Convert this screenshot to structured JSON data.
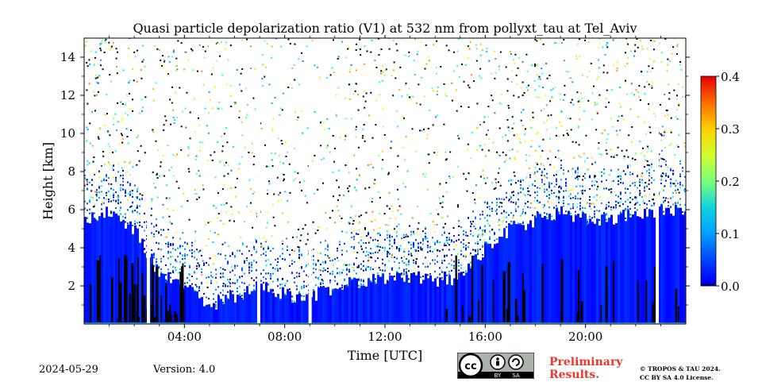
{
  "chart_data": {
    "type": "heatmap",
    "title": "Quasi particle depolarization ratio (V1) at 532 nm from pollyxt_tau at Tel_Aviv",
    "xlabel": "Time [UTC]",
    "ylabel": "Height [km]",
    "xlim": [
      0,
      24
    ],
    "ylim": [
      0,
      15
    ],
    "xticks": [
      4,
      8,
      12,
      16,
      20
    ],
    "xtick_labels": [
      "04:00",
      "08:00",
      "12:00",
      "16:00",
      "20:00"
    ],
    "yticks": [
      2,
      4,
      6,
      8,
      10,
      12,
      14
    ],
    "ytick_labels": [
      "2",
      "4",
      "6",
      "8",
      "10",
      "12",
      "14"
    ],
    "colorbar": {
      "range": [
        0.0,
        0.4
      ],
      "ticks": [
        0.0,
        0.1,
        0.2,
        0.3,
        0.4
      ],
      "tick_labels": [
        "0.0",
        "0.1",
        "0.2",
        "0.3",
        "0.4"
      ],
      "colormap": "jet",
      "location": "right"
    },
    "layer_profile": {
      "description_free_values": true,
      "time_hours": [
        0.0,
        1.0,
        2.0,
        3.0,
        4.0,
        5.0,
        6.0,
        7.0,
        8.0,
        9.0,
        10.0,
        11.0,
        12.0,
        13.0,
        14.0,
        15.0,
        16.0,
        17.0,
        18.0,
        19.0,
        20.0,
        21.0,
        22.0,
        23.0,
        24.0
      ],
      "layer_top_km": [
        5.5,
        5.8,
        5.0,
        2.5,
        2.0,
        1.0,
        1.5,
        2.0,
        1.5,
        1.5,
        2.0,
        2.3,
        2.5,
        2.5,
        2.3,
        2.5,
        4.0,
        5.0,
        5.5,
        5.8,
        5.5,
        5.5,
        5.8,
        6.0,
        6.0
      ],
      "low_depol_value": 0.05,
      "aloft_depol_range": [
        0.1,
        0.3
      ],
      "data_gaps_hours": [
        2.5,
        6.9,
        8.95,
        22.8
      ]
    }
  },
  "footer": {
    "date": "2024-05-29",
    "version": "Version: 4.0",
    "preliminary_line1": "Preliminary",
    "preliminary_line2": "Results.",
    "copyright_line1": "© TROPOS & TAU 2024.",
    "copyright_line2": "CC BY SA 4.0 License."
  },
  "license_badge": {
    "icon": "cc-by-sa-icon",
    "text_by": "BY",
    "text_sa": "SA"
  }
}
